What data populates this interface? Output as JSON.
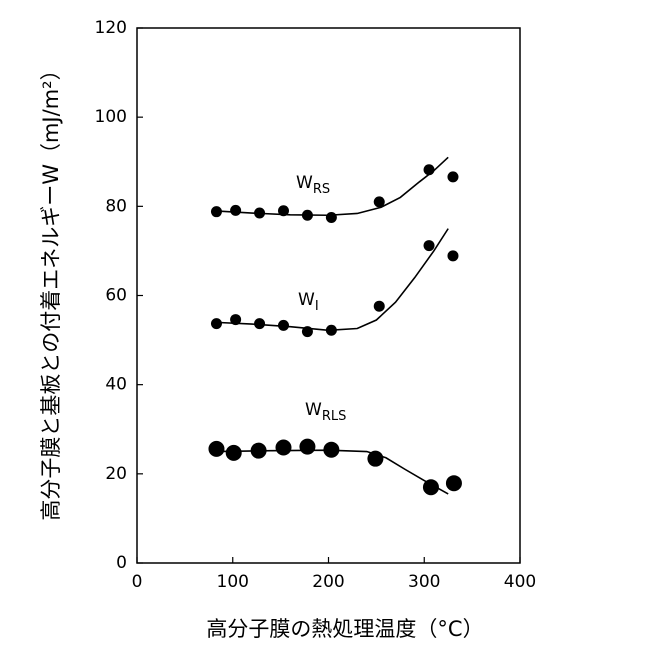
{
  "chart_data": {
    "type": "scatter",
    "xlabel": "高分子膜の熱処理温度（°C）",
    "ylabel": "高分子膜と基板との付着エネルギーW（mJ/m²）",
    "xlim": [
      0,
      400
    ],
    "ylim": [
      0,
      120
    ],
    "xticks": [
      0,
      100,
      200,
      300,
      400
    ],
    "yticks": [
      0,
      20,
      40,
      60,
      80,
      100,
      120
    ],
    "color": "#000000",
    "annotations": [
      {
        "main": "W",
        "sub": "RS"
      },
      {
        "main": "W",
        "sub": "I"
      },
      {
        "main": "W",
        "sub": "RLS"
      }
    ],
    "series": [
      {
        "marker_size": 5.5,
        "x": [
          83,
          103,
          128,
          153,
          178,
          203,
          253,
          305,
          330
        ],
        "values": [
          78.8,
          79.1,
          78.5,
          79,
          78,
          77.5,
          81,
          88.2,
          86.6
        ]
      },
      {
        "marker_size": 5.5,
        "x": [
          83,
          103,
          128,
          153,
          178,
          203,
          253,
          305,
          330
        ],
        "values": [
          53.7,
          54.6,
          53.7,
          53.3,
          51.9,
          52.2,
          57.6,
          71.2,
          68.9
        ]
      },
      {
        "marker_size": 8,
        "x": [
          83,
          101,
          127,
          153,
          178,
          203,
          249,
          307,
          331
        ],
        "values": [
          25.6,
          24.7,
          25.2,
          25.9,
          26.1,
          25.4,
          23.4,
          17,
          17.9
        ]
      }
    ],
    "fits": [
      {
        "x": [
          80,
          120,
          160,
          200,
          230,
          255,
          275,
          295,
          310,
          325
        ],
        "values": [
          79,
          78.5,
          78.1,
          78,
          78.4,
          79.8,
          82,
          85.5,
          88,
          91
        ]
      },
      {
        "x": [
          80,
          120,
          160,
          200,
          230,
          250,
          270,
          290,
          310,
          325
        ],
        "values": [
          54,
          53.6,
          53,
          52.2,
          52.6,
          54.5,
          58.5,
          64,
          70,
          75
        ]
      },
      {
        "x": [
          80,
          140,
          200,
          240,
          260,
          280,
          300,
          325
        ],
        "values": [
          25,
          25.2,
          25.3,
          25,
          23.6,
          21,
          18.5,
          15.5
        ]
      }
    ]
  }
}
